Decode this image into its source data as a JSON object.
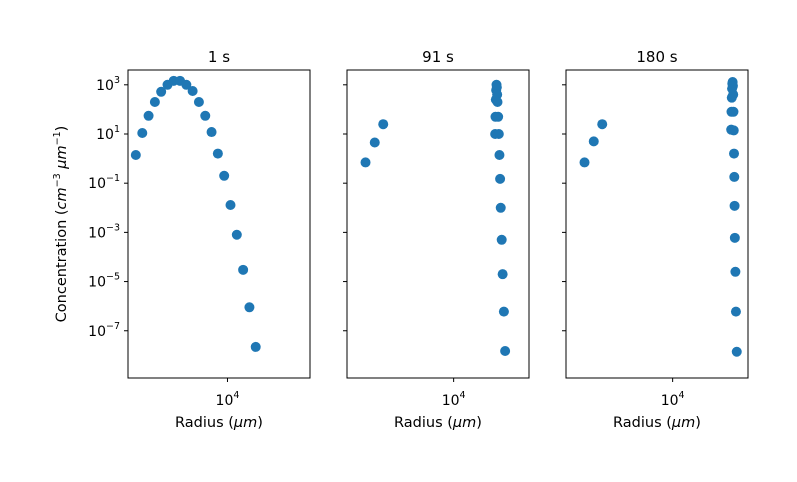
{
  "chart_data": {
    "type": "scatter",
    "ylabel": "Concentration (cm⁻³ μm⁻¹)",
    "xscale": "log",
    "yscale": "log",
    "ylim": [
      1.2e-09,
      4000.0
    ],
    "y_ticks": [
      {
        "value": 1000,
        "mantissa": "10",
        "exp": "3"
      },
      {
        "value": 10,
        "mantissa": "10",
        "exp": "1"
      },
      {
        "value": 0.1,
        "mantissa": "10",
        "exp": "−1"
      },
      {
        "value": 0.001,
        "mantissa": "10",
        "exp": "−3"
      },
      {
        "value": 1e-05,
        "mantissa": "10",
        "exp": "−5"
      },
      {
        "value": 1e-07,
        "mantissa": "10",
        "exp": "−7"
      }
    ],
    "color": "#1f77b4",
    "panels": [
      {
        "title": "1 s",
        "xlabel": "Radius (μm)",
        "xlim": [
          2000,
          38000
        ],
        "x_ticks": [
          {
            "value": 10000,
            "mantissa": "10",
            "exp": "4"
          }
        ],
        "points": [
          [
            2270,
            1.4
          ],
          [
            2520,
            11
          ],
          [
            2790,
            55
          ],
          [
            3090,
            200
          ],
          [
            3420,
            520
          ],
          [
            3790,
            1000
          ],
          [
            4190,
            1450
          ],
          [
            4640,
            1450
          ],
          [
            5140,
            1000
          ],
          [
            5690,
            560
          ],
          [
            6300,
            200
          ],
          [
            6980,
            55
          ],
          [
            7730,
            12
          ],
          [
            8560,
            1.6
          ],
          [
            9480,
            0.2
          ],
          [
            10500,
            0.013
          ],
          [
            11630,
            0.0008
          ],
          [
            12880,
            3e-05
          ],
          [
            14260,
            9e-07
          ],
          [
            15790,
            2.2e-08
          ]
        ]
      },
      {
        "title": "91 s",
        "xlabel": "Radius (μm)",
        "xlim": [
          3500,
          21000
        ],
        "x_ticks": [
          {
            "value": 10000,
            "mantissa": "10",
            "exp": "4"
          }
        ],
        "points": [
          [
            4200,
            0.7
          ],
          [
            4600,
            4.5
          ],
          [
            5000,
            25
          ],
          [
            15050,
            10
          ],
          [
            15100,
            50
          ],
          [
            15150,
            250
          ],
          [
            15200,
            600
          ],
          [
            15250,
            1000
          ],
          [
            15300,
            800
          ],
          [
            15350,
            400
          ],
          [
            15400,
            200
          ],
          [
            15500,
            50
          ],
          [
            15600,
            10
          ],
          [
            15700,
            1.4
          ],
          [
            15800,
            0.15
          ],
          [
            15900,
            0.01
          ],
          [
            16050,
            0.0005
          ],
          [
            16200,
            2e-05
          ],
          [
            16400,
            6e-07
          ],
          [
            16600,
            1.5e-08
          ]
        ]
      },
      {
        "title": "180 s",
        "xlabel": "Radius (μm)",
        "xlim": [
          3500,
          21000
        ],
        "x_ticks": [
          {
            "value": 10000,
            "mantissa": "10",
            "exp": "4"
          }
        ],
        "points": [
          [
            4200,
            0.7
          ],
          [
            4600,
            5
          ],
          [
            5000,
            25
          ],
          [
            17800,
            15
          ],
          [
            17850,
            80
          ],
          [
            17900,
            300
          ],
          [
            17950,
            700
          ],
          [
            18000,
            1100
          ],
          [
            18050,
            1300
          ],
          [
            18100,
            900
          ],
          [
            18150,
            400
          ],
          [
            18200,
            80
          ],
          [
            18250,
            14
          ],
          [
            18300,
            1.6
          ],
          [
            18350,
            0.18
          ],
          [
            18400,
            0.012
          ],
          [
            18450,
            0.0006
          ],
          [
            18550,
            2.5e-05
          ],
          [
            18650,
            6e-07
          ],
          [
            18800,
            1.4e-08
          ]
        ]
      }
    ]
  }
}
